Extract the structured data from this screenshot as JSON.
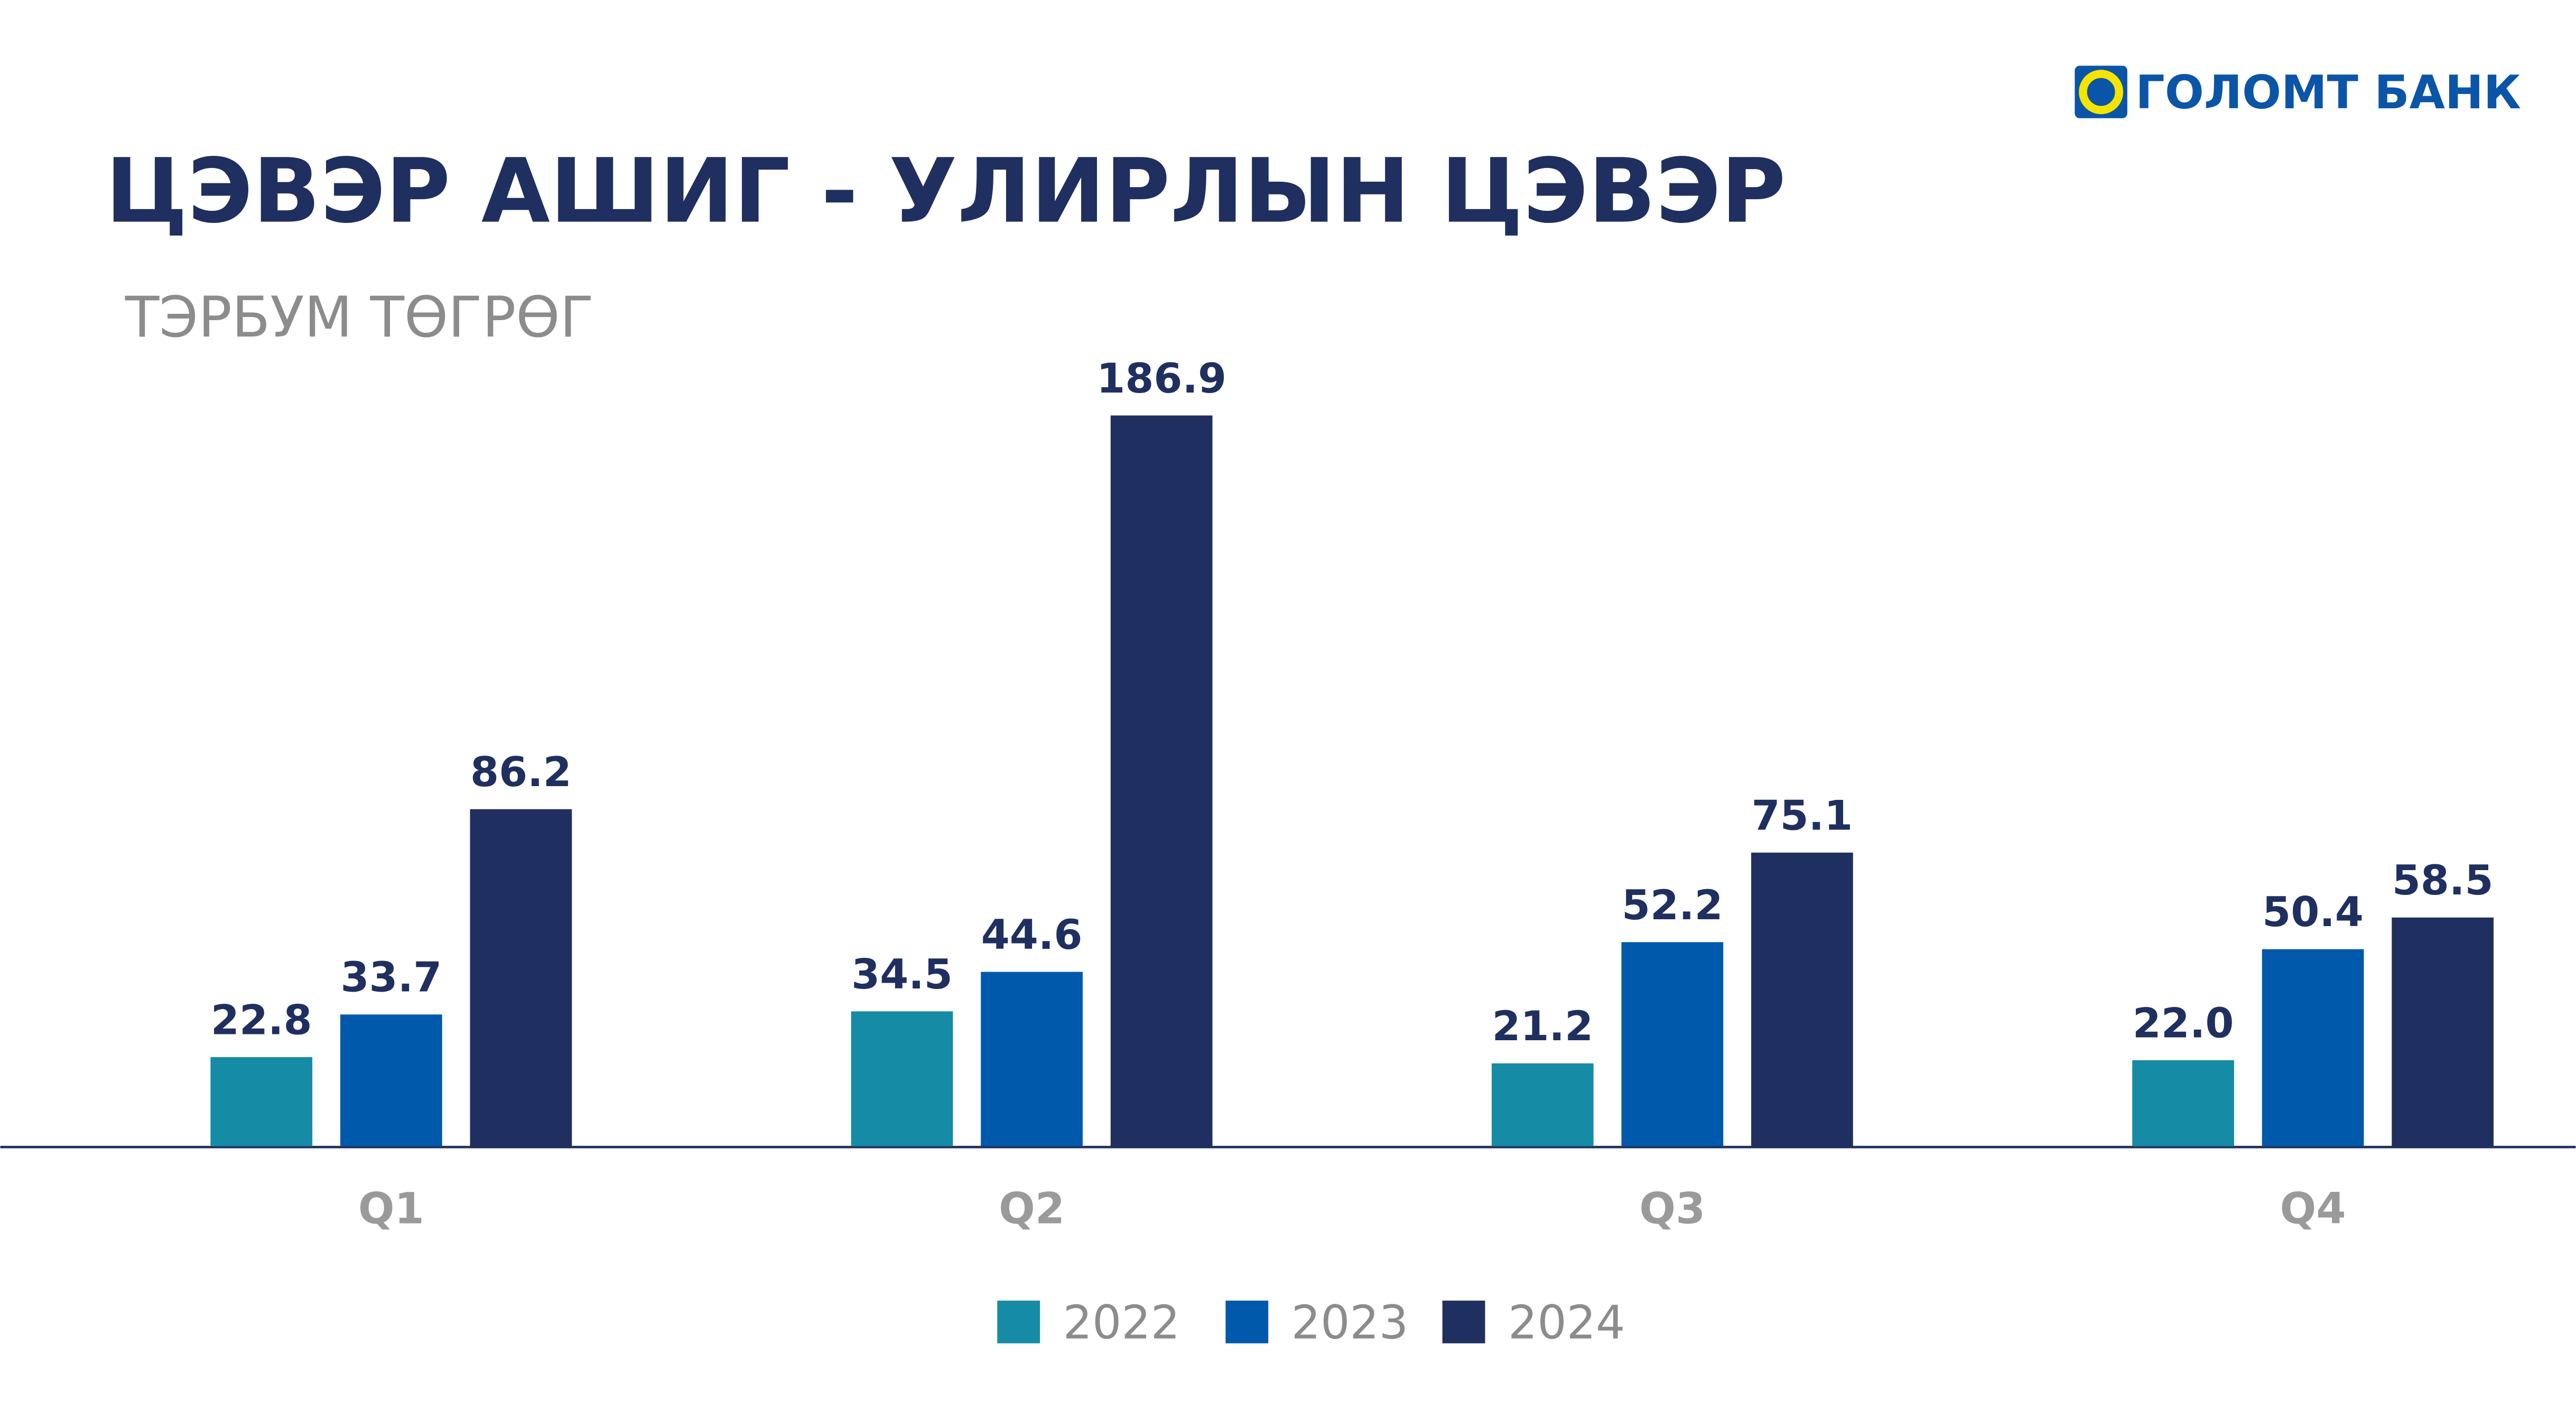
{
  "logo": "ГОЛОМТ БАНК",
  "chart_data": {
    "type": "bar",
    "title": "ЦЭВЭР АШИГ - УЛИРЛЫН ЦЭВЭР",
    "subtitle": "ТЭРБУМ ТӨГРӨГ",
    "categories": [
      "Q1",
      "Q2",
      "Q3",
      "Q4"
    ],
    "series": [
      {
        "name": "2022",
        "color": "#168ba6",
        "values": [
          22.8,
          34.5,
          21.2,
          22.0
        ],
        "value_labels": [
          "22.8",
          "34.5",
          "21.2",
          "22.0"
        ]
      },
      {
        "name": "2023",
        "color": "#0059aa",
        "values": [
          33.7,
          44.6,
          52.2,
          50.4
        ],
        "value_labels": [
          "33.7",
          "44.6",
          "52.2",
          "50.4"
        ]
      },
      {
        "name": "2024",
        "color": "#1f2f5f",
        "values": [
          86.2,
          186.9,
          75.1,
          58.5
        ],
        "value_labels": [
          "86.2",
          "186.9",
          "75.1",
          "58.5"
        ]
      }
    ]
  }
}
